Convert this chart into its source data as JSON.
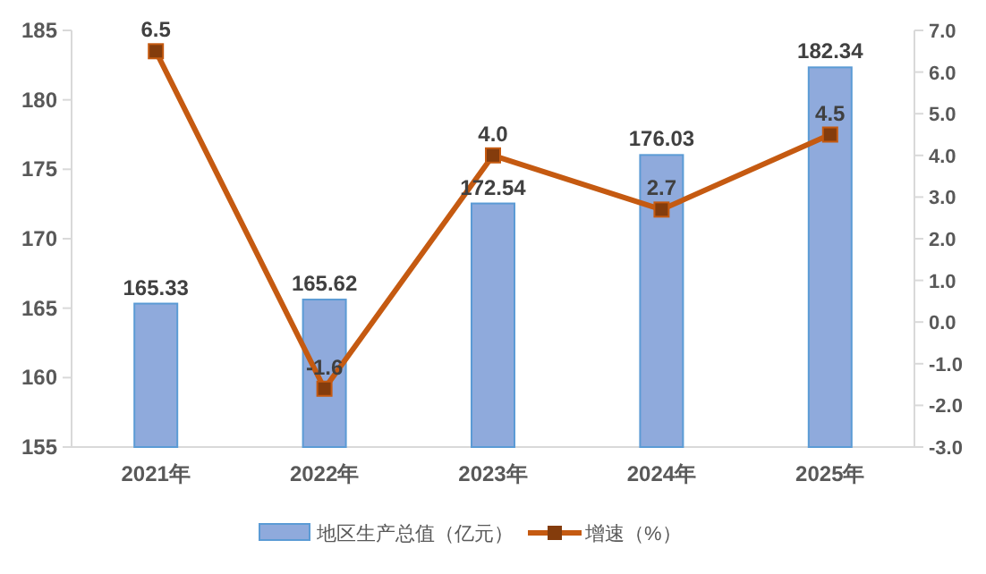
{
  "chart_data": {
    "type": "bar",
    "categories": [
      "2021年",
      "2022年",
      "2023年",
      "2024年",
      "2025年"
    ],
    "series": [
      {
        "name": "地区生产总值（亿元）",
        "color": "#8faadc",
        "values": [
          165.33,
          165.62,
          172.54,
          176.03,
          182.34
        ]
      },
      {
        "name": "增速（%）",
        "type": "line",
        "axis": "y2",
        "color": "#c55a11",
        "values": [
          6.5,
          -1.6,
          4.0,
          2.7,
          4.5
        ],
        "value_labels": [
          "6.5",
          "-1.6",
          "4.0",
          "2.7",
          "4.5"
        ]
      }
    ],
    "ylim": [
      155,
      185
    ],
    "yticks": [
      155,
      160,
      165,
      170,
      175,
      180,
      185
    ],
    "y2lim": [
      -3,
      7
    ],
    "y2ticks": [
      {
        "value": -3,
        "label": "-3.0"
      },
      {
        "value": -2,
        "label": "-2.0"
      },
      {
        "value": -1,
        "label": "-1.0"
      },
      {
        "value": 0,
        "label": "0.0"
      },
      {
        "value": 1,
        "label": "1.0"
      },
      {
        "value": 2,
        "label": "2.0"
      },
      {
        "value": 3,
        "label": "3.0"
      },
      {
        "value": 4,
        "label": "4.0"
      },
      {
        "value": 5,
        "label": "5.0"
      },
      {
        "value": 6,
        "label": "6.0"
      },
      {
        "value": 7,
        "label": "7.0"
      }
    ],
    "data_labels": true,
    "marker": "square",
    "line_style": "solid",
    "grid": false,
    "legend": "bottom"
  }
}
